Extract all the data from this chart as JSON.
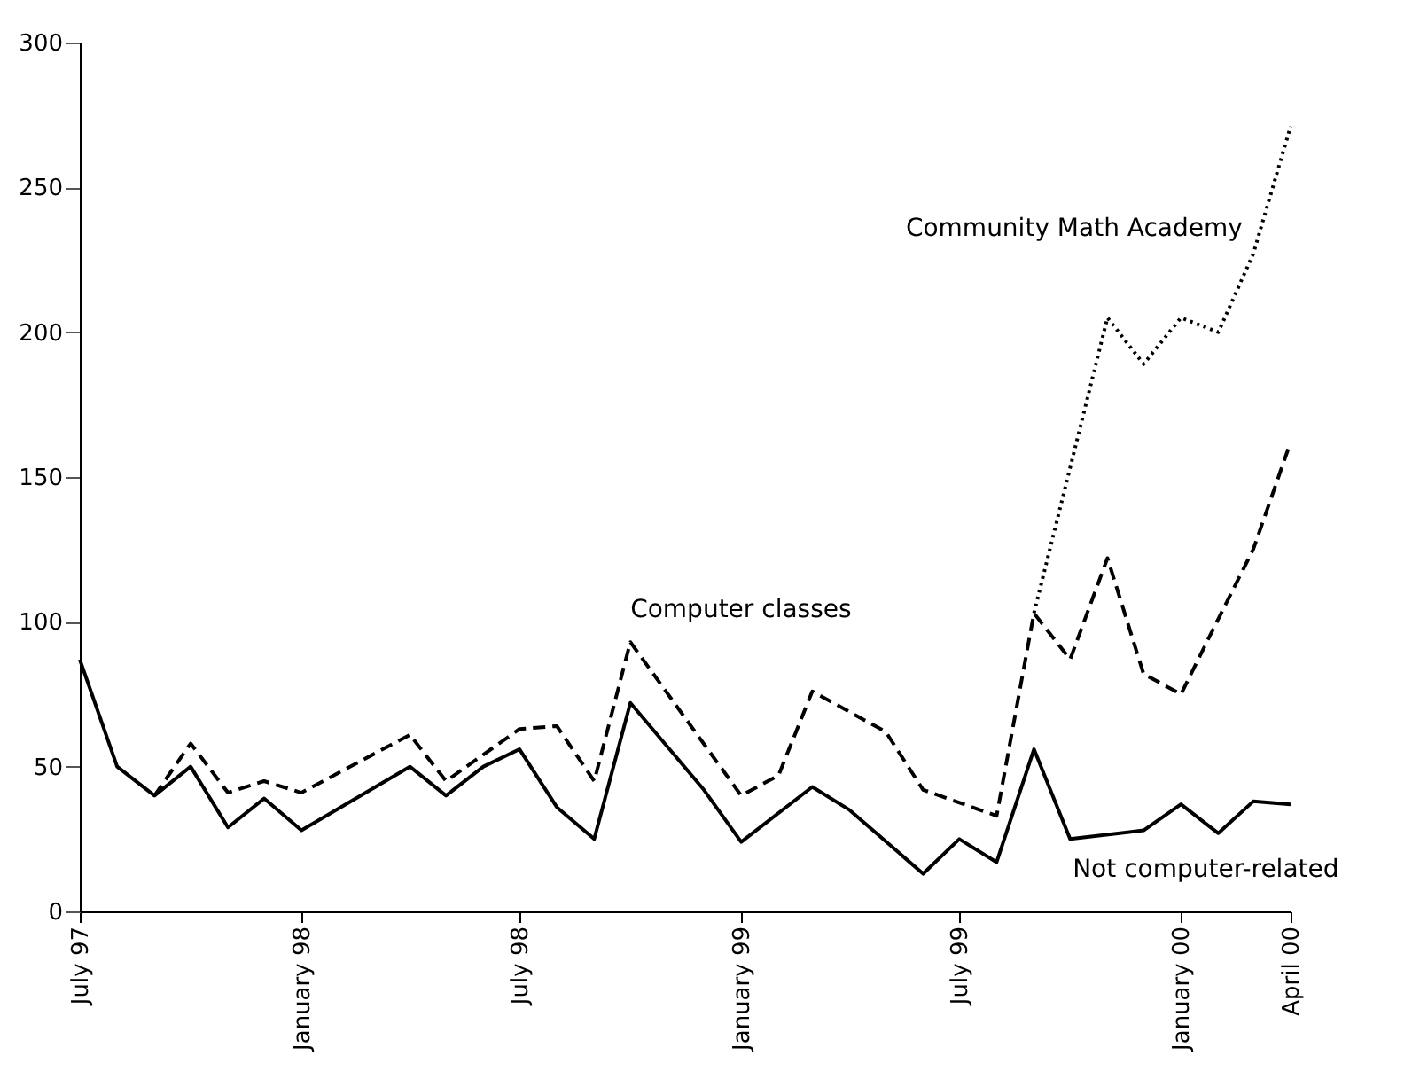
{
  "chart_data": {
    "type": "line",
    "xlim": [
      "1997-07",
      "2000-04"
    ],
    "xticks": [
      {
        "value": "1997-07",
        "label": "July 97"
      },
      {
        "value": "1998-01",
        "label": "January 98"
      },
      {
        "value": "1998-07",
        "label": "July 98"
      },
      {
        "value": "1999-01",
        "label": "January 99"
      },
      {
        "value": "1999-07",
        "label": "July 99"
      },
      {
        "value": "2000-01",
        "label": "January 00"
      },
      {
        "value": "2000-04",
        "label": "April 00"
      }
    ],
    "ylim": [
      0,
      300
    ],
    "yticks": [
      0,
      50,
      100,
      150,
      200,
      250,
      300
    ],
    "grid": false,
    "series": [
      {
        "name": "Not computer-related",
        "color": "#000000",
        "line_style": "solid",
        "x": [
          "1997-07",
          "1997-08",
          "1997-09",
          "1997-10",
          "1997-11",
          "1997-12",
          "1998-01",
          "1998-04",
          "1998-05",
          "1998-06",
          "1998-07",
          "1998-08",
          "1998-09",
          "1998-10",
          "1998-12",
          "1999-01",
          "1999-03",
          "1999-04",
          "1999-06",
          "1999-07",
          "1999-08",
          "1999-09",
          "1999-10",
          "1999-12",
          "2000-01",
          "2000-02",
          "2000-03",
          "2000-04"
        ],
        "values": [
          87,
          50,
          40,
          50,
          29,
          39,
          28,
          50,
          40,
          50,
          56,
          36,
          25,
          72,
          42,
          24,
          43,
          35,
          13,
          25,
          17,
          56,
          25,
          28,
          37,
          27,
          38,
          37
        ]
      },
      {
        "name": "Computer classes",
        "color": "#000000",
        "line_style": "dashed",
        "x": [
          "1997-09",
          "1997-10",
          "1997-11",
          "1997-12",
          "1998-01",
          "1998-04",
          "1998-05",
          "1998-07",
          "1998-08",
          "1998-09",
          "1998-10",
          "1999-01",
          "1999-02",
          "1999-03",
          "1999-05",
          "1999-06",
          "1999-08",
          "1999-09",
          "1999-10",
          "1999-11",
          "1999-12",
          "2000-01",
          "2000-02",
          "2000-03",
          "2000-04"
        ],
        "values": [
          40,
          58,
          41,
          45,
          41,
          61,
          45,
          63,
          64,
          45,
          93,
          40,
          47,
          76,
          62,
          42,
          33,
          103,
          87,
          122,
          82,
          75,
          101,
          125,
          162
        ]
      },
      {
        "name": "Community Math Academy",
        "color": "#000000",
        "line_style": "dotted",
        "x": [
          "1999-09",
          "1999-11",
          "1999-12",
          "2000-01",
          "2000-02",
          "2000-03",
          "2000-04"
        ],
        "values": [
          103,
          205,
          189,
          205,
          200,
          227,
          271
        ]
      }
    ]
  }
}
